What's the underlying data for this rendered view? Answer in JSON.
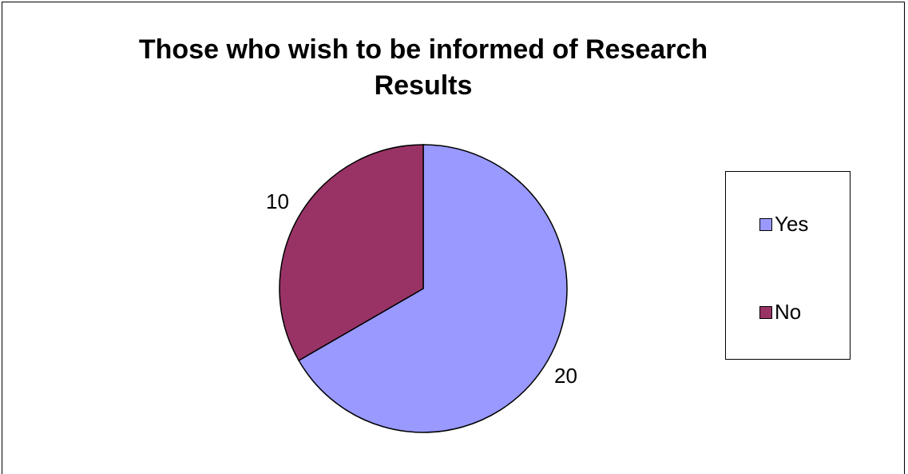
{
  "chart_data": {
    "type": "pie",
    "title": "Those who wish to be informed of Research Results",
    "categories": [
      "Yes",
      "No"
    ],
    "values": [
      20,
      10
    ],
    "colors": [
      "#9999FF",
      "#993366"
    ],
    "legend_position": "right",
    "data_labels": [
      "20",
      "10"
    ]
  },
  "legend": {
    "items": [
      {
        "label": "Yes",
        "color": "#9999FF"
      },
      {
        "label": "No",
        "color": "#993366"
      }
    ]
  }
}
